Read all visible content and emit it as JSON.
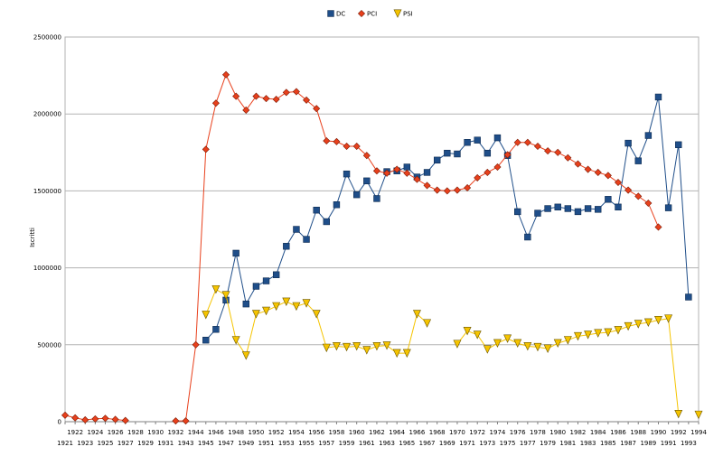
{
  "chart_data": {
    "type": "line",
    "title": "",
    "xlabel": "",
    "ylabel": "Iscritti",
    "ylim": [
      0,
      2500000
    ],
    "yticks": [
      0,
      500000,
      1000000,
      1500000,
      2000000,
      2500000
    ],
    "ytick_labels": [
      "0",
      "500000",
      "1000000",
      "1500000",
      "2000000",
      "2500000"
    ],
    "grid": true,
    "legend_position": "top-center",
    "x": [
      "1921",
      "1922",
      "1923",
      "1924",
      "1925",
      "1926",
      "1927",
      "1928",
      "1929",
      "1930",
      "1931",
      "1932",
      "1943",
      "1944",
      "1945",
      "1946",
      "1947",
      "1948",
      "1949",
      "1950",
      "1951",
      "1952",
      "1953",
      "1954",
      "1955",
      "1956",
      "1957",
      "1958",
      "1959",
      "1960",
      "1961",
      "1962",
      "1963",
      "1964",
      "1965",
      "1966",
      "1967",
      "1968",
      "1969",
      "1970",
      "1971",
      "1972",
      "1973",
      "1974",
      "1975",
      "1976",
      "1977",
      "1978",
      "1979",
      "1980",
      "1981",
      "1982",
      "1983",
      "1984",
      "1985",
      "1986",
      "1987",
      "1988",
      "1989",
      "1990",
      "1991",
      "1992",
      "1993",
      "1994"
    ],
    "series": [
      {
        "name": "DC",
        "color": "#1f4e89",
        "marker": "square",
        "values": [
          null,
          null,
          null,
          null,
          null,
          null,
          null,
          null,
          null,
          null,
          null,
          null,
          null,
          null,
          530000,
          600000,
          790000,
          1095000,
          765000,
          880000,
          915000,
          955000,
          1140000,
          1250000,
          1185000,
          1375000,
          1300000,
          1410000,
          1610000,
          1475000,
          1565000,
          1450000,
          1625000,
          1630000,
          1655000,
          1590000,
          1620000,
          1700000,
          1745000,
          1740000,
          1815000,
          1830000,
          1745000,
          1845000,
          1730000,
          1365000,
          1200000,
          1355000,
          1385000,
          1395000,
          1385000,
          1365000,
          1385000,
          1380000,
          1445000,
          1395000,
          1810000,
          1695000,
          1860000,
          2110000,
          1390000,
          1800000,
          810000,
          null
        ]
      },
      {
        "name": "PCI",
        "color": "#e8401c",
        "marker": "diamond",
        "values": [
          42000,
          25000,
          12000,
          18000,
          22000,
          15000,
          8000,
          null,
          null,
          null,
          null,
          5000,
          5000,
          500000,
          1770000,
          2070000,
          2255000,
          2115000,
          2025000,
          2115000,
          2100000,
          2095000,
          2140000,
          2145000,
          2090000,
          2035000,
          1825000,
          1820000,
          1790000,
          1790000,
          1730000,
          1630000,
          1615000,
          1640000,
          1615000,
          1575000,
          1535000,
          1505000,
          1500000,
          1505000,
          1520000,
          1585000,
          1620000,
          1655000,
          1735000,
          1815000,
          1815000,
          1790000,
          1760000,
          1750000,
          1715000,
          1675000,
          1640000,
          1620000,
          1600000,
          1555000,
          1505000,
          1465000,
          1420000,
          1265000,
          null,
          null,
          null,
          null
        ]
      },
      {
        "name": "PSI",
        "color": "#f5c400",
        "marker": "triangle-down",
        "values": [
          null,
          null,
          null,
          null,
          null,
          null,
          null,
          null,
          null,
          null,
          null,
          null,
          null,
          null,
          695000,
          860000,
          822000,
          530000,
          430000,
          700000,
          720000,
          750000,
          780000,
          750000,
          770000,
          700000,
          480000,
          490000,
          485000,
          490000,
          465000,
          490000,
          495000,
          445000,
          445000,
          700000,
          640000,
          null,
          null,
          505000,
          590000,
          565000,
          470000,
          510000,
          540000,
          510000,
          490000,
          485000,
          475000,
          510000,
          530000,
          555000,
          565000,
          575000,
          580000,
          595000,
          620000,
          635000,
          645000,
          660000,
          670000,
          50000,
          null,
          45000
        ]
      }
    ]
  }
}
